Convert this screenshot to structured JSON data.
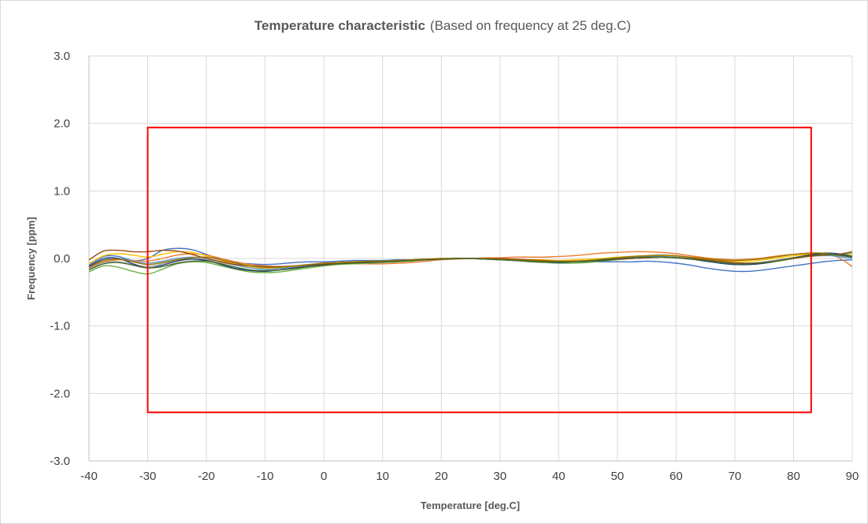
{
  "chart_data": {
    "type": "line",
    "title": "Temperature characteristic",
    "subtitle": "(Based on frequency at 25 deg.C)",
    "xlabel": "Temperature [deg.C]",
    "ylabel": "Frequency [ppm]",
    "xlim": [
      -40,
      90
    ],
    "ylim": [
      -3.0,
      3.0
    ],
    "x_ticks": [
      "-40",
      "-30",
      "-20",
      "-10",
      "0",
      "10",
      "20",
      "30",
      "40",
      "50",
      "60",
      "70",
      "80",
      "90"
    ],
    "y_ticks": [
      "3.0",
      "2.0",
      "1.0",
      "0.0",
      "-1.0",
      "-2.0",
      "-3.0"
    ],
    "grid": true,
    "legend": "none",
    "spec_box": {
      "x": [
        -30,
        83
      ],
      "y": [
        -2.28,
        1.94
      ],
      "color": "#ff0000"
    },
    "x": [
      -40,
      -37.5,
      -35,
      -32.5,
      -30,
      -27.5,
      -25,
      -22.5,
      -20,
      -17.5,
      -15,
      -12.5,
      -10,
      -7.5,
      -5,
      -2.5,
      0,
      2.5,
      5,
      7.5,
      10,
      12.5,
      15,
      17.5,
      20,
      22.5,
      25,
      27.5,
      30,
      32.5,
      35,
      37.5,
      40,
      42.5,
      45,
      47.5,
      50,
      52.5,
      55,
      57.5,
      60,
      62.5,
      65,
      67.5,
      70,
      72.5,
      75,
      77.5,
      80,
      82.5,
      85,
      87.5,
      90
    ],
    "series": [
      {
        "color": "#4472c4",
        "values": [
          -0.1,
          0.03,
          0.03,
          -0.03,
          0.0,
          0.12,
          0.15,
          0.13,
          0.06,
          -0.02,
          -0.06,
          -0.08,
          -0.09,
          -0.08,
          -0.06,
          -0.05,
          -0.05,
          -0.04,
          -0.03,
          -0.03,
          -0.03,
          -0.02,
          -0.02,
          -0.01,
          -0.01,
          0.0,
          0.0,
          0.0,
          -0.01,
          -0.02,
          -0.03,
          -0.04,
          -0.05,
          -0.05,
          -0.05,
          -0.05,
          -0.05,
          -0.05,
          -0.04,
          -0.05,
          -0.07,
          -0.1,
          -0.14,
          -0.17,
          -0.19,
          -0.19,
          -0.17,
          -0.14,
          -0.11,
          -0.08,
          -0.05,
          -0.03,
          -0.02
        ]
      },
      {
        "color": "#ed7d31",
        "values": [
          -0.14,
          -0.05,
          -0.02,
          -0.03,
          -0.04,
          0.0,
          0.05,
          0.07,
          0.05,
          0.0,
          -0.05,
          -0.09,
          -0.11,
          -0.12,
          -0.11,
          -0.1,
          -0.09,
          -0.08,
          -0.08,
          -0.08,
          -0.08,
          -0.07,
          -0.06,
          -0.04,
          -0.02,
          -0.01,
          0.0,
          0.01,
          0.01,
          0.02,
          0.02,
          0.02,
          0.03,
          0.04,
          0.06,
          0.08,
          0.09,
          0.1,
          0.1,
          0.09,
          0.07,
          0.04,
          0.01,
          -0.01,
          -0.02,
          -0.01,
          0.01,
          0.04,
          0.06,
          0.07,
          0.06,
          0.02,
          -0.12
        ]
      },
      {
        "color": "#a5a5a5",
        "values": [
          -0.16,
          -0.06,
          -0.05,
          -0.09,
          -0.12,
          -0.08,
          -0.03,
          -0.01,
          -0.02,
          -0.06,
          -0.1,
          -0.13,
          -0.14,
          -0.13,
          -0.11,
          -0.09,
          -0.07,
          -0.06,
          -0.05,
          -0.05,
          -0.04,
          -0.03,
          -0.02,
          -0.01,
          -0.01,
          0.0,
          0.0,
          0.0,
          -0.01,
          -0.02,
          -0.03,
          -0.04,
          -0.05,
          -0.05,
          -0.04,
          -0.03,
          -0.01,
          0.0,
          0.01,
          0.02,
          0.02,
          0.01,
          -0.02,
          -0.05,
          -0.07,
          -0.07,
          -0.05,
          -0.02,
          0.01,
          0.03,
          0.04,
          0.04,
          0.03
        ]
      },
      {
        "color": "#ffc000",
        "values": [
          -0.08,
          0.04,
          0.07,
          0.05,
          0.02,
          0.06,
          0.1,
          0.09,
          0.04,
          -0.03,
          -0.09,
          -0.13,
          -0.15,
          -0.14,
          -0.12,
          -0.1,
          -0.08,
          -0.06,
          -0.05,
          -0.05,
          -0.04,
          -0.03,
          -0.02,
          -0.01,
          0.0,
          0.0,
          0.0,
          0.0,
          -0.01,
          -0.01,
          -0.02,
          -0.02,
          -0.03,
          -0.02,
          -0.01,
          0.0,
          0.02,
          0.03,
          0.04,
          0.04,
          0.03,
          0.01,
          -0.01,
          -0.03,
          -0.04,
          -0.04,
          -0.02,
          0.01,
          0.04,
          0.06,
          0.07,
          0.06,
          0.05
        ]
      },
      {
        "color": "#5b9bd5",
        "values": [
          -0.12,
          -0.02,
          0.0,
          -0.04,
          -0.07,
          -0.04,
          0.0,
          0.02,
          0.0,
          -0.05,
          -0.1,
          -0.14,
          -0.16,
          -0.15,
          -0.13,
          -0.11,
          -0.09,
          -0.08,
          -0.07,
          -0.07,
          -0.06,
          -0.05,
          -0.03,
          -0.02,
          -0.01,
          0.0,
          0.0,
          0.0,
          -0.01,
          -0.02,
          -0.03,
          -0.04,
          -0.05,
          -0.05,
          -0.04,
          -0.02,
          0.0,
          0.02,
          0.03,
          0.03,
          0.02,
          0.0,
          -0.03,
          -0.06,
          -0.08,
          -0.08,
          -0.06,
          -0.03,
          0.01,
          0.04,
          0.05,
          0.03,
          0.0
        ]
      },
      {
        "color": "#70ad47",
        "values": [
          -0.2,
          -0.11,
          -0.13,
          -0.19,
          -0.23,
          -0.16,
          -0.08,
          -0.05,
          -0.06,
          -0.11,
          -0.16,
          -0.2,
          -0.21,
          -0.2,
          -0.17,
          -0.14,
          -0.11,
          -0.09,
          -0.08,
          -0.07,
          -0.06,
          -0.05,
          -0.04,
          -0.02,
          -0.01,
          0.0,
          0.0,
          -0.01,
          -0.02,
          -0.03,
          -0.05,
          -0.06,
          -0.07,
          -0.07,
          -0.06,
          -0.04,
          -0.02,
          0.0,
          0.01,
          0.02,
          0.01,
          -0.01,
          -0.04,
          -0.07,
          -0.09,
          -0.09,
          -0.07,
          -0.04,
          0.0,
          0.04,
          0.06,
          0.05,
          0.08
        ]
      },
      {
        "color": "#264478",
        "values": [
          -0.12,
          0.0,
          0.0,
          -0.08,
          -0.14,
          -0.1,
          -0.04,
          -0.01,
          -0.03,
          -0.09,
          -0.15,
          -0.18,
          -0.19,
          -0.17,
          -0.14,
          -0.11,
          -0.09,
          -0.07,
          -0.06,
          -0.05,
          -0.04,
          -0.03,
          -0.02,
          -0.01,
          -0.01,
          0.0,
          0.0,
          -0.01,
          -0.02,
          -0.03,
          -0.04,
          -0.05,
          -0.06,
          -0.05,
          -0.04,
          -0.03,
          -0.01,
          0.0,
          0.01,
          0.02,
          0.01,
          -0.01,
          -0.04,
          -0.07,
          -0.09,
          -0.09,
          -0.07,
          -0.03,
          0.01,
          0.05,
          0.08,
          0.07,
          0.03
        ]
      },
      {
        "color": "#9e480e",
        "values": [
          -0.02,
          0.11,
          0.12,
          0.1,
          0.1,
          0.12,
          0.11,
          0.06,
          0.0,
          -0.05,
          -0.09,
          -0.11,
          -0.12,
          -0.12,
          -0.11,
          -0.09,
          -0.08,
          -0.07,
          -0.06,
          -0.06,
          -0.05,
          -0.04,
          -0.03,
          -0.02,
          -0.01,
          0.0,
          0.0,
          0.0,
          0.0,
          -0.01,
          -0.02,
          -0.03,
          -0.04,
          -0.04,
          -0.03,
          -0.02,
          -0.01,
          0.0,
          0.01,
          0.02,
          0.01,
          0.0,
          -0.02,
          -0.04,
          -0.06,
          -0.07,
          -0.06,
          -0.03,
          0.0,
          0.03,
          0.05,
          0.06,
          0.1
        ]
      },
      {
        "color": "#997300",
        "values": [
          -0.13,
          -0.03,
          -0.01,
          -0.05,
          -0.09,
          -0.06,
          -0.02,
          0.01,
          0.02,
          -0.02,
          -0.07,
          -0.11,
          -0.13,
          -0.13,
          -0.11,
          -0.09,
          -0.07,
          -0.06,
          -0.05,
          -0.04,
          -0.04,
          -0.03,
          -0.02,
          -0.01,
          0.0,
          0.0,
          0.0,
          0.0,
          -0.01,
          -0.02,
          -0.03,
          -0.04,
          -0.04,
          -0.04,
          -0.03,
          -0.01,
          0.01,
          0.03,
          0.04,
          0.05,
          0.04,
          0.02,
          0.0,
          -0.02,
          -0.03,
          -0.02,
          0.0,
          0.03,
          0.06,
          0.08,
          0.08,
          0.05,
          0.02
        ]
      },
      {
        "color": "#43682b",
        "values": [
          -0.17,
          -0.08,
          -0.06,
          -0.1,
          -0.14,
          -0.12,
          -0.07,
          -0.04,
          -0.04,
          -0.08,
          -0.13,
          -0.17,
          -0.18,
          -0.17,
          -0.15,
          -0.12,
          -0.1,
          -0.08,
          -0.07,
          -0.06,
          -0.05,
          -0.04,
          -0.03,
          -0.02,
          -0.01,
          0.0,
          0.0,
          -0.01,
          -0.02,
          -0.03,
          -0.04,
          -0.05,
          -0.05,
          -0.05,
          -0.04,
          -0.02,
          0.0,
          0.01,
          0.02,
          0.02,
          0.01,
          -0.01,
          -0.03,
          -0.06,
          -0.08,
          -0.08,
          -0.06,
          -0.03,
          0.01,
          0.04,
          0.06,
          0.05,
          0.02
        ]
      }
    ]
  }
}
